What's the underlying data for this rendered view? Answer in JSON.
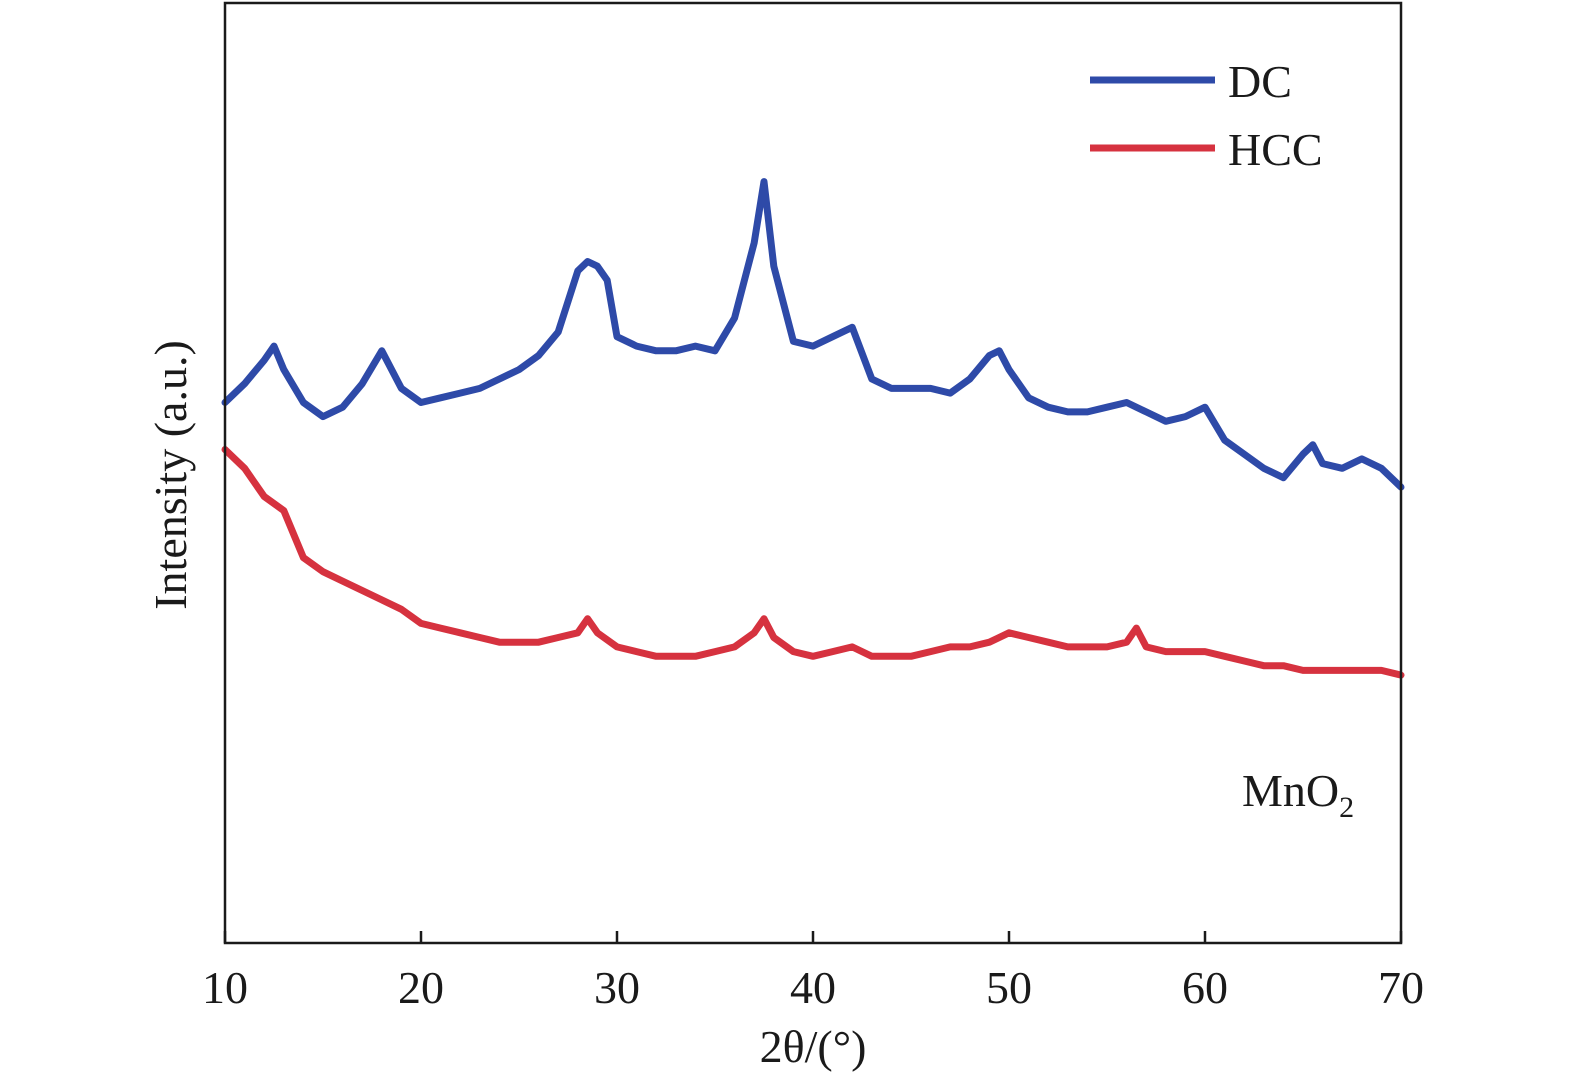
{
  "chart_data": {
    "type": "line",
    "title": "",
    "xlabel": "2θ/(°)",
    "ylabel": "Intensity (a.u.)",
    "xlim": [
      10,
      70
    ],
    "ylim": [
      0,
      1
    ],
    "y_ticks_shown": false,
    "grid": false,
    "legend_position": "top-right",
    "x_ticks": [
      "10",
      "20",
      "30",
      "40",
      "50",
      "60",
      "70"
    ],
    "annotation": {
      "base": "MnO",
      "sub": "2"
    },
    "series": [
      {
        "name": "DC",
        "color": "#2e4aa8",
        "x": [
          10,
          11,
          12,
          12.5,
          13,
          14,
          15,
          16,
          17,
          18,
          19,
          20,
          21,
          22,
          23,
          24,
          25,
          26,
          27,
          28,
          28.5,
          29,
          29.5,
          30,
          31,
          32,
          33,
          34,
          35,
          36,
          37,
          37.5,
          38,
          39,
          40,
          41,
          42,
          43,
          44,
          45,
          46,
          47,
          48,
          49,
          49.5,
          50,
          51,
          52,
          53,
          54,
          55,
          56,
          57,
          58,
          59,
          60,
          61,
          62,
          63,
          64,
          65,
          65.5,
          66,
          67,
          68,
          69,
          70
        ],
        "y": [
          0.575,
          0.595,
          0.62,
          0.635,
          0.61,
          0.575,
          0.56,
          0.57,
          0.595,
          0.63,
          0.59,
          0.575,
          0.58,
          0.585,
          0.59,
          0.6,
          0.61,
          0.625,
          0.65,
          0.715,
          0.725,
          0.72,
          0.705,
          0.645,
          0.635,
          0.63,
          0.63,
          0.635,
          0.63,
          0.665,
          0.745,
          0.81,
          0.72,
          0.64,
          0.635,
          0.645,
          0.655,
          0.6,
          0.59,
          0.59,
          0.59,
          0.585,
          0.6,
          0.625,
          0.63,
          0.61,
          0.58,
          0.57,
          0.565,
          0.565,
          0.57,
          0.575,
          0.565,
          0.555,
          0.56,
          0.57,
          0.535,
          0.52,
          0.505,
          0.495,
          0.52,
          0.53,
          0.51,
          0.505,
          0.515,
          0.505,
          0.485
        ]
      },
      {
        "name": "HCC",
        "color": "#d6323f",
        "x": [
          10,
          11,
          12,
          13,
          14,
          15,
          16,
          17,
          18,
          19,
          20,
          21,
          22,
          23,
          24,
          25,
          26,
          27,
          28,
          28.5,
          29,
          30,
          31,
          32,
          33,
          34,
          35,
          36,
          37,
          37.5,
          38,
          39,
          40,
          41,
          42,
          43,
          44,
          45,
          46,
          47,
          48,
          49,
          50,
          51,
          52,
          53,
          54,
          55,
          56,
          56.5,
          57,
          58,
          59,
          60,
          61,
          62,
          63,
          64,
          65,
          66,
          67,
          68,
          69,
          70
        ],
        "y": [
          0.525,
          0.505,
          0.475,
          0.46,
          0.41,
          0.395,
          0.385,
          0.375,
          0.365,
          0.355,
          0.34,
          0.335,
          0.33,
          0.325,
          0.32,
          0.32,
          0.32,
          0.325,
          0.33,
          0.345,
          0.33,
          0.315,
          0.31,
          0.305,
          0.305,
          0.305,
          0.31,
          0.315,
          0.33,
          0.345,
          0.325,
          0.31,
          0.305,
          0.31,
          0.315,
          0.305,
          0.305,
          0.305,
          0.31,
          0.315,
          0.315,
          0.32,
          0.33,
          0.325,
          0.32,
          0.315,
          0.315,
          0.315,
          0.32,
          0.335,
          0.315,
          0.31,
          0.31,
          0.31,
          0.305,
          0.3,
          0.295,
          0.295,
          0.29,
          0.29,
          0.29,
          0.29,
          0.29,
          0.285
        ]
      }
    ]
  }
}
